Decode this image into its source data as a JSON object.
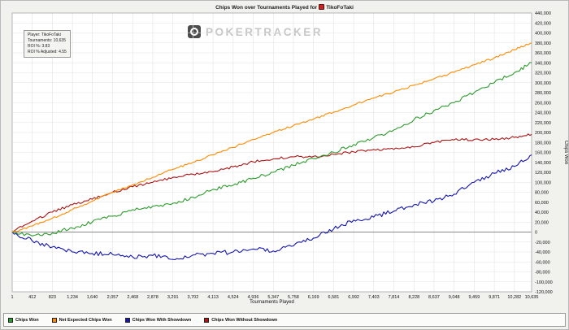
{
  "title": {
    "prefix": "Chips Won over Tournaments Played for",
    "player": "TikoFoTaki"
  },
  "watermark": {
    "text": "POKERTRACKER"
  },
  "info_box": {
    "lines": [
      "Player: TikoFoTaki",
      "Tournaments: 10,635",
      "ROI %: 3.83",
      "ROI % Adjusted: 4.55"
    ]
  },
  "chart_data": {
    "type": "line",
    "title": "Chips Won over Tournaments Played for TikoFoTaki",
    "xlabel": "Tournaments Played",
    "ylabel": "Chips Won",
    "xlim": [
      1,
      10635
    ],
    "ylim": [
      -120000,
      440000
    ],
    "y_step": 20000,
    "grid": true,
    "legend_position": "bottom",
    "x_ticks": [
      "1",
      "412",
      "823",
      "1,234",
      "1,640",
      "2,057",
      "2,468",
      "2,878",
      "3,291",
      "3,702",
      "4,113",
      "4,524",
      "4,936",
      "5,347",
      "5,758",
      "6,169",
      "6,581",
      "6,992",
      "7,403",
      "7,814",
      "8,228",
      "8,637",
      "9,048",
      "9,459",
      "9,871",
      "10,282",
      "10,635"
    ],
    "y_ticks": [
      "440,000",
      "420,000",
      "400,000",
      "380,000",
      "360,000",
      "340,000",
      "320,000",
      "300,000",
      "280,000",
      "260,000",
      "240,000",
      "220,000",
      "200,000",
      "180,000",
      "160,000",
      "140,000",
      "120,000",
      "100,000",
      "80,000",
      "60,000",
      "40,000",
      "20,000",
      "0",
      "-20,000",
      "-40,000",
      "-60,000",
      "-80,000",
      "-100,000",
      "-120,000"
    ],
    "x": [
      1,
      412,
      823,
      1234,
      1640,
      2057,
      2468,
      2878,
      3291,
      3702,
      4113,
      4524,
      4936,
      5347,
      5758,
      6169,
      6581,
      6992,
      7403,
      7814,
      8228,
      8637,
      9048,
      9459,
      9871,
      10282,
      10635
    ],
    "series": [
      {
        "name": "Chips Won",
        "color": "#2e9b2e",
        "z": 2,
        "noise": 3500,
        "values": [
          0,
          -8000,
          -2000,
          8000,
          20000,
          32000,
          45000,
          52000,
          58000,
          70000,
          86000,
          94000,
          108000,
          120000,
          134000,
          148000,
          160000,
          176000,
          190000,
          205000,
          226000,
          244000,
          260000,
          280000,
          300000,
          320000,
          340000
        ]
      },
      {
        "name": "Net Expected Chips Won",
        "color": "#ff8a00",
        "z": 3,
        "noise": 2000,
        "values": [
          0,
          12000,
          28000,
          45000,
          62000,
          80000,
          95000,
          110000,
          126000,
          140000,
          155000,
          170000,
          186000,
          200000,
          214000,
          227000,
          241000,
          255000,
          269000,
          281000,
          295000,
          308000,
          321000,
          336000,
          350000,
          366000,
          380000
        ]
      },
      {
        "name": "Chips Won With Showdown",
        "color": "#1515b0",
        "z": 0,
        "noise": 4500,
        "values": [
          0,
          -18000,
          -30000,
          -40000,
          -43000,
          -45000,
          -50000,
          -47000,
          -55000,
          -46000,
          -43000,
          -40000,
          -34000,
          -38000,
          -28000,
          -12000,
          6000,
          24000,
          30000,
          42000,
          55000,
          62000,
          76000,
          100000,
          118000,
          132000,
          155000
        ]
      },
      {
        "name": "Chips Won Without Showdown",
        "color": "#aa1515",
        "z": 1,
        "noise": 2500,
        "values": [
          0,
          22000,
          40000,
          55000,
          66000,
          80000,
          91000,
          100000,
          110000,
          116000,
          121000,
          131000,
          141000,
          147000,
          151000,
          152000,
          156000,
          161000,
          166000,
          166000,
          171000,
          180000,
          185000,
          186000,
          186000,
          190000,
          196000
        ]
      }
    ]
  }
}
